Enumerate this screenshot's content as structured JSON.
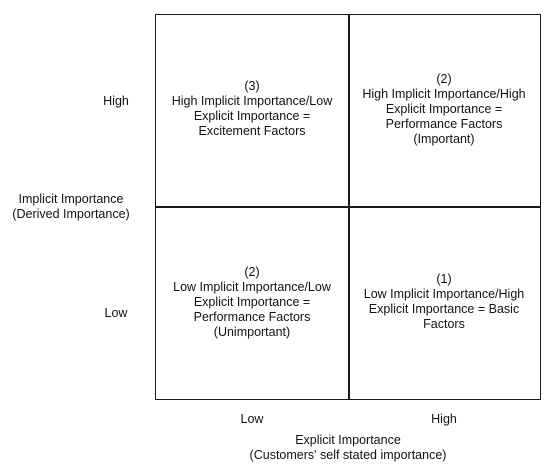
{
  "y_axis": {
    "high_label": "High",
    "low_label": "Low",
    "title_line1": "Implicit Importance",
    "title_line2": "(Derived Importance)"
  },
  "x_axis": {
    "low_label": "Low",
    "high_label": "High",
    "title_line1": "Explicit Importance",
    "title_line2": "(Customers' self stated importance)"
  },
  "quadrants": {
    "top_left": {
      "number": "(3)",
      "line1": "High Implicit Importance/Low",
      "line2": "Explicit Importance =",
      "line3": "Excitement Factors"
    },
    "top_right": {
      "number": "(2)",
      "line1": "High Implicit Importance/High",
      "line2": "Explicit Importance =",
      "line3": "Performance Factors",
      "line4": "(Important)"
    },
    "bottom_left": {
      "number": "(2)",
      "line1": "Low Implicit Importance/Low",
      "line2": "Explicit Importance =",
      "line3": "Performance Factors",
      "line4": "(Unimportant)"
    },
    "bottom_right": {
      "number": "(1)",
      "line1": "Low Implicit Importance/High",
      "line2": "Explicit Importance = Basic",
      "line3": "Factors"
    }
  }
}
